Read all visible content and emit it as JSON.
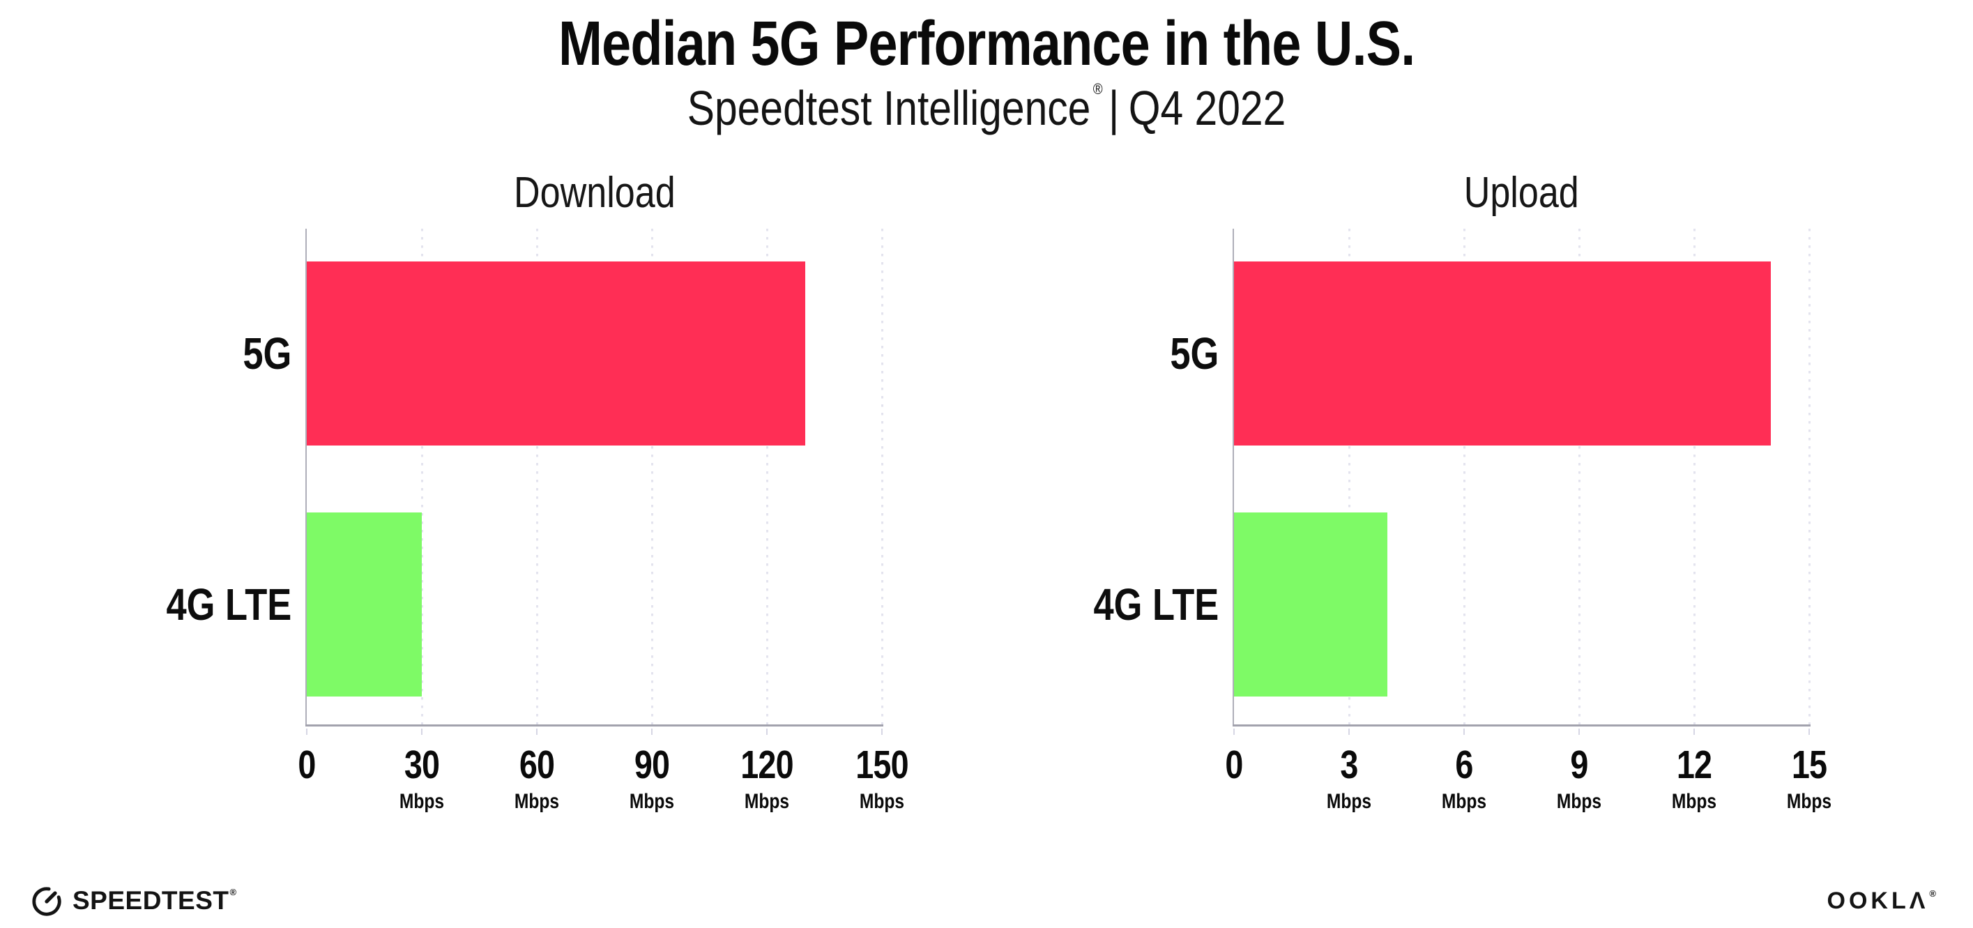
{
  "header": {
    "title": "Median 5G Performance in the U.S.",
    "subtitle_brand": "Speedtest Intelligence",
    "subtitle_reg": "®",
    "subtitle_sep": "|",
    "subtitle_period": "Q4 2022"
  },
  "chart_data": [
    {
      "type": "bar",
      "orientation": "horizontal",
      "title": "Download",
      "categories": [
        "5G",
        "4G LTE"
      ],
      "values": [
        130,
        30
      ],
      "unit": "Mbps",
      "xlim": [
        0,
        150
      ],
      "xticks": [
        0,
        30,
        60,
        90,
        120,
        150
      ],
      "bar_colors": [
        "#ff2e55",
        "#7efa66"
      ],
      "grid": "vertical dotted gridlines at each tick, no legend"
    },
    {
      "type": "bar",
      "orientation": "horizontal",
      "title": "Upload",
      "categories": [
        "5G",
        "4G LTE"
      ],
      "values": [
        14,
        4
      ],
      "unit": "Mbps",
      "xlim": [
        0,
        15
      ],
      "xticks": [
        0,
        3,
        6,
        9,
        12,
        15
      ],
      "bar_colors": [
        "#ff2e55",
        "#7efa66"
      ],
      "grid": "vertical dotted gridlines at each tick, no legend"
    }
  ],
  "footer": {
    "speedtest_label": "SPEEDTEST",
    "speedtest_reg": "®",
    "ookla_label": "OOKLΛ",
    "ookla_reg": "®"
  },
  "colors": {
    "bar_5g": "#ff2e55",
    "bar_4g_lte": "#7efa66",
    "gridline": "#e3e3ee",
    "axis": "#a2a2ad",
    "text": "#0d0d0d"
  }
}
